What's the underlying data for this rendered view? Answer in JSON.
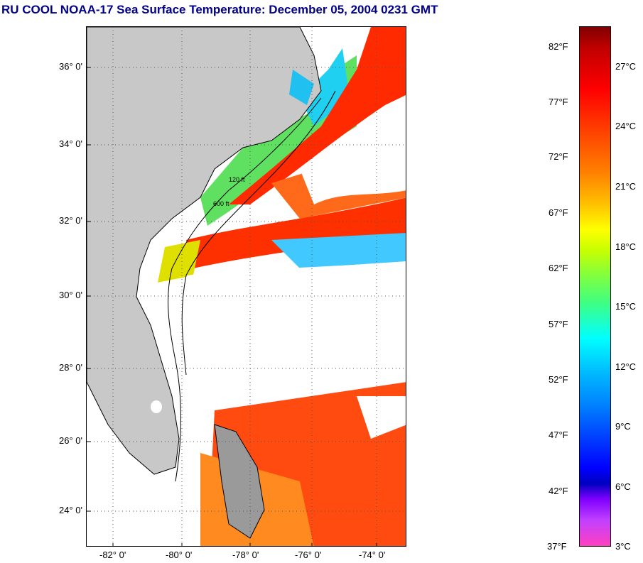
{
  "title": "RU COOL  NOAA-17  Sea Surface Temperature:  December 05, 2004 0231 GMT",
  "lat_labels": [
    "36° 0'",
    "34° 0'",
    "32° 0'",
    "30° 0'",
    "28° 0'",
    "26° 0'",
    "24° 0'"
  ],
  "lon_labels": [
    "-82° 0'",
    "-80° 0'",
    "-78° 0'",
    "-76° 0'",
    "-74° 0'"
  ],
  "contour_labels": [
    "120 ft",
    "600 ft"
  ],
  "colorbar": {
    "fahrenheit_labels": [
      "82°F",
      "77°F",
      "72°F",
      "67°F",
      "62°F",
      "57°F",
      "52°F",
      "47°F",
      "42°F",
      "37°F"
    ],
    "celsius_labels": [
      "27°C",
      "24°C",
      "21°C",
      "18°C",
      "15°C",
      "12°C",
      "9°C",
      "6°C",
      "3°C"
    ]
  },
  "colors": {
    "title": "#00008b",
    "land": "#c8c8c8",
    "cloud": "#ffffff",
    "gulf_stream": "#ff2000"
  }
}
